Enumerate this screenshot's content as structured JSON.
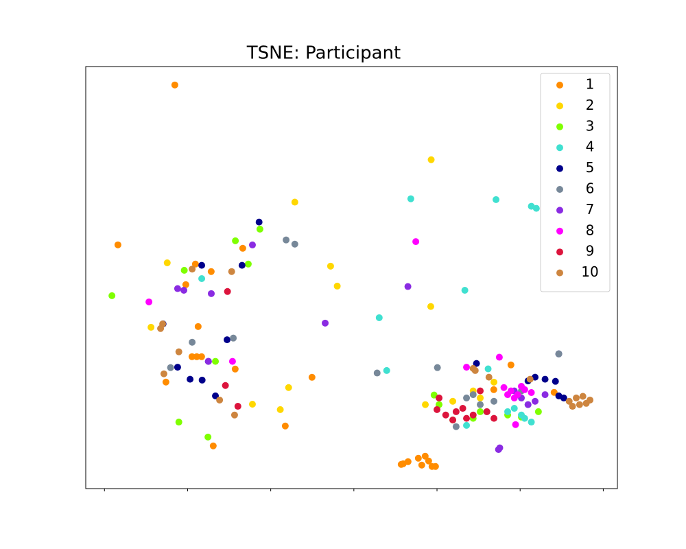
{
  "chart_data": {
    "type": "scatter",
    "title": "TSNE: Participant",
    "xlim": [
      -64.5,
      63.4
    ],
    "ylim": [
      -50.7,
      50.8
    ],
    "xticks": [
      -60,
      -40,
      -20,
      0,
      20,
      40,
      60
    ],
    "legend": "upper right",
    "series": [
      {
        "name": "1",
        "color": "#ff8c00",
        "x": [
          -43.07,
          -56.76,
          -26.73,
          -38.12,
          -34.32,
          -40.43,
          -37.46,
          -38.94,
          -37.79,
          -36.63,
          -28.55,
          -45.21,
          -10.07,
          -16.5,
          -33.83,
          11.39,
          13.04,
          15.51,
          17.16,
          17.99,
          18.81,
          16.34,
          19.64,
          11.88,
          37.79,
          33.66,
          48.18
        ],
        "y": [
          46.37,
          7.92,
          7.1,
          3.3,
          1.49,
          -1.65,
          -11.72,
          -18.98,
          -18.98,
          -18.98,
          -21.95,
          -25.08,
          -23.93,
          -35.64,
          -40.43,
          -44.88,
          -44.22,
          -43.4,
          -42.9,
          -44.06,
          -45.38,
          -45.05,
          -45.38,
          -44.72,
          -20.96,
          -26.9,
          -27.56
        ]
      },
      {
        "name": "2",
        "color": "#ffd700",
        "x": [
          18.6,
          -14.2,
          -44.9,
          -5.6,
          -4.0,
          18.5,
          -48.8,
          -15.7,
          -24.4,
          -17.7,
          17.2,
          23.8,
          30.4,
          33.7,
          28.7
        ],
        "y": [
          28.4,
          18.2,
          3.6,
          2.8,
          -2.0,
          -6.9,
          -11.9,
          -26.4,
          -30.4,
          -31.7,
          -30.5,
          -29.7,
          -28.9,
          -25.1,
          -27.2
        ]
      },
      {
        "name": "3",
        "color": "#7fff00",
        "x": [
          -58.2,
          -22.6,
          -28.5,
          -25.4,
          -40.8,
          -33.3,
          -42.1,
          -35.1,
          19.3,
          23.8,
          28.7,
          37.0,
          40.3,
          44.4,
          20.5,
          30.4
        ],
        "y": [
          -4.3,
          11.7,
          8.9,
          3.3,
          1.8,
          -20.1,
          -34.7,
          -38.3,
          -28.2,
          -34.2,
          -33.8,
          -33.0,
          -33.5,
          -32.2,
          -30.5,
          -32.2
        ]
      },
      {
        "name": "4",
        "color": "#40e0d0",
        "x": [
          13.7,
          34.2,
          42.7,
          43.9,
          -36.6,
          26.7,
          6.1,
          7.9,
          37.0,
          40.3,
          42.7,
          38.6,
          41.9,
          27.1,
          32.3,
          41.1
        ],
        "y": [
          19.0,
          18.8,
          17.2,
          16.7,
          -0.2,
          -3.0,
          -9.6,
          -22.3,
          -32.2,
          -33.0,
          -34.7,
          -31.4,
          -30.5,
          -35.5,
          -21.9,
          -33.8
        ]
      },
      {
        "name": "5",
        "color": "#00008b",
        "x": [
          -22.8,
          -36.6,
          -26.9,
          -45.9,
          -30.5,
          -42.4,
          -39.4,
          -36.5,
          -35.0,
          -33.3,
          43.6,
          46.0,
          48.5,
          41.9,
          49.3,
          50.5,
          29.5,
          49.3
        ],
        "y": [
          13.4,
          3.0,
          3.0,
          -11.1,
          -14.9,
          -21.5,
          -24.4,
          -24.6,
          -20.1,
          -28.4,
          -23.9,
          -24.4,
          -24.9,
          -24.8,
          -28.4,
          -28.9,
          -20.6,
          -18.3
        ]
      },
      {
        "name": "6",
        "color": "#778899",
        "x": [
          -16.3,
          -14.2,
          -29.0,
          -38.9,
          -44.1,
          5.6,
          20.1,
          49.3,
          28.7,
          30.4,
          33.7,
          32.0,
          27.1,
          24.6,
          40.3
        ],
        "y": [
          9.1,
          8.1,
          -14.5,
          -15.5,
          -21.6,
          -22.9,
          -21.6,
          -18.3,
          -28.1,
          -30.5,
          -29.7,
          -32.2,
          -28.9,
          -35.8,
          -27.2
        ]
      },
      {
        "name": "7",
        "color": "#8a2be2",
        "x": [
          -24.4,
          -42.4,
          -40.9,
          -34.3,
          13.0,
          -6.9,
          -35.0,
          40.3,
          43.6,
          46.0,
          41.9,
          38.6,
          34.8,
          35.1
        ],
        "y": [
          7.9,
          -2.6,
          -3.0,
          -3.8,
          -2.1,
          -10.9,
          -20.1,
          -28.9,
          -29.7,
          -28.1,
          -30.5,
          -27.2,
          -41.3,
          -40.9
        ]
      },
      {
        "name": "8",
        "color": "#ff00ff",
        "x": [
          14.9,
          -49.3,
          -29.2,
          35.0,
          27.1,
          38.9,
          36.1,
          37.8,
          39.4,
          41.1,
          42.7,
          38.6,
          37.0,
          40.3
        ],
        "y": [
          8.7,
          -5.8,
          -20.1,
          -19.1,
          -21.5,
          -35.3,
          -26.4,
          -27.2,
          -28.1,
          -26.9,
          -27.6,
          -28.9,
          -28.1,
          -26.1
        ]
      },
      {
        "name": "9",
        "color": "#dc143c",
        "x": [
          -30.4,
          -30.9,
          -27.9,
          20.5,
          22.1,
          24.6,
          27.1,
          28.7,
          23.8,
          20.0,
          32.0,
          30.4,
          33.7,
          26.2
        ],
        "y": [
          -3.3,
          -25.9,
          -30.9,
          -28.9,
          -33.0,
          -32.2,
          -33.8,
          -33.0,
          -34.2,
          -31.7,
          -32.2,
          -27.2,
          -33.8,
          -31.4
        ]
      },
      {
        "name": "10",
        "color": "#cd853f",
        "x": [
          -38.9,
          -29.4,
          -46.0,
          -46.5,
          -42.1,
          -45.7,
          -32.3,
          -28.7,
          51.8,
          53.5,
          55.1,
          56.8,
          54.3,
          52.6,
          55.9,
          28.7,
          29.2,
          32.5,
          42.4
        ],
        "y": [
          2.1,
          1.5,
          -11.1,
          -12.2,
          -17.8,
          -23.1,
          -29.4,
          -33.0,
          -29.7,
          -28.9,
          -28.5,
          -29.4,
          -30.5,
          -30.9,
          -30.2,
          -21.8,
          -22.3,
          -23.9,
          -24.4
        ]
      }
    ]
  }
}
